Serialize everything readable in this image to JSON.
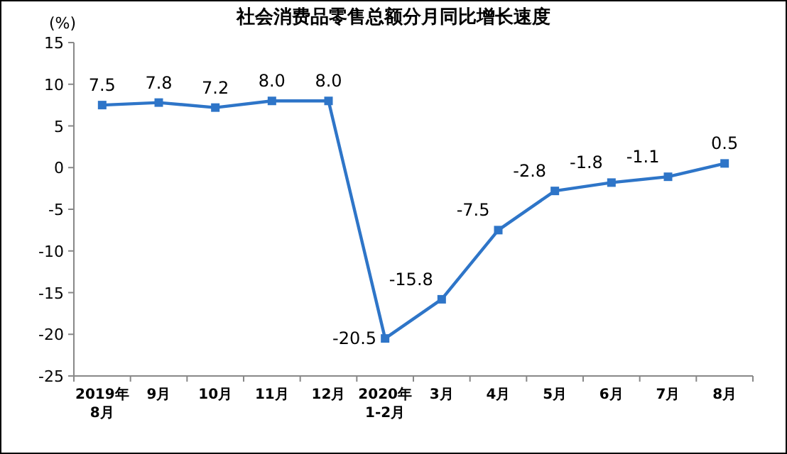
{
  "chart_data": {
    "type": "line",
    "title": "社会消费品零售总额分月同比增长速度",
    "ylabel": "(%)",
    "categories": [
      "2019年\n8月",
      "9月",
      "10月",
      "11月",
      "12月",
      "2020年\n1-2月",
      "3月",
      "4月",
      "5月",
      "6月",
      "7月",
      "8月"
    ],
    "series": [
      {
        "color": "#2e75c8",
        "values": [
          7.5,
          7.8,
          7.2,
          8.0,
          8.0,
          -20.5,
          -15.8,
          -7.5,
          -2.8,
          -1.8,
          -1.1,
          0.5
        ],
        "value_labels": [
          "7.5",
          "7.8",
          "7.2",
          "8.0",
          "8.0",
          "-20.5",
          "-15.8",
          "-7.5",
          "-2.8",
          "-1.8",
          "-1.1",
          "0.5"
        ]
      }
    ],
    "ylim": [
      -25,
      15
    ],
    "yticks": [
      -25,
      -20,
      -15,
      -10,
      -5,
      0,
      5,
      10,
      15
    ],
    "marker": "square",
    "line_style": "solid",
    "grid": false
  }
}
